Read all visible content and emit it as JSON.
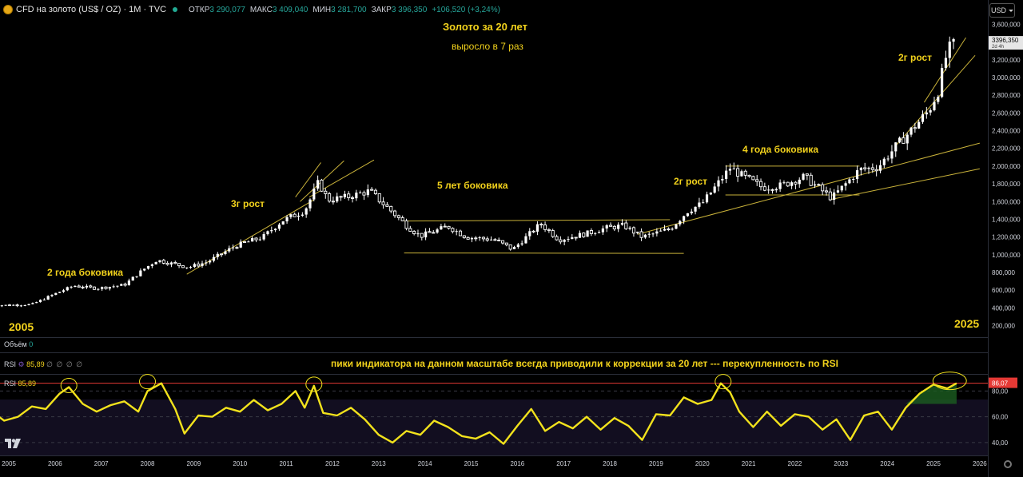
{
  "header": {
    "symbol": "CFD на золото (US$ / OZ) · 1M · TVC",
    "open_label": "ОТКР",
    "open": "3 290,077",
    "high_label": "МАКС",
    "high": "3 409,040",
    "low_label": "МИН",
    "low": "3 281,700",
    "close_label": "ЗАКР",
    "close": "3 396,350",
    "change": "+106,520 (+3,24%)",
    "currency": "USD"
  },
  "annotations": {
    "title": "Золото за 20 лет",
    "subtitle": "выросло в 7 раз",
    "range_2y": "2 года боковика",
    "growth_3y": "3г рост",
    "range_5y": "5 лет боковика",
    "growth_2y_a": "2г рост",
    "range_4y": "4 года боковика",
    "growth_2y_b": "2г рост",
    "year_start": "2005",
    "year_end": "2025",
    "rsi_note": "пики индикатора на данном масштабе всегда приводили к коррекции за 20 лет  ---  перекупленность по RSI"
  },
  "panes": {
    "volume_label": "Объём",
    "volume_value": "0",
    "rsi_label": "RSI",
    "rsi_value": "85,89",
    "rsi_extra": "∅ ∅ ∅ ∅",
    "rsi_label2": "RSI",
    "rsi_value2": "85,89"
  },
  "colors": {
    "background": "#000000",
    "candle_up": "#ffffff",
    "candle_down": "#ffffff",
    "trendline": "#c9b23a",
    "annotation": "#f2d21c",
    "rsi_line": "#f2e21c",
    "rsi_level": "#e53935",
    "rsi_fill": "#1b5e20",
    "price_tag": "#e6e6e6",
    "rsi_tag": "#e53935"
  },
  "chart_data": {
    "type": "candlestick",
    "title": "CFD на золото (US$ / OZ) · 1M · TVC",
    "x_ticks": [
      "2005",
      "2006",
      "2007",
      "2008",
      "2009",
      "2010",
      "2011",
      "2012",
      "2013",
      "2014",
      "2015",
      "2016",
      "2017",
      "2018",
      "2019",
      "2020",
      "2021",
      "2022",
      "2023",
      "2024",
      "2025",
      "2026"
    ],
    "y_ticks": [
      200,
      400,
      600,
      800,
      1000,
      1200,
      1400,
      1600,
      1800,
      2000,
      2200,
      2400,
      2600,
      2800,
      3000,
      3200,
      3400,
      3600
    ],
    "ylim": [
      160,
      3680
    ],
    "last_price": "3396,350",
    "last_price_sub": "2d 4h",
    "price_series": {
      "name": "Gold monthly close",
      "x": [
        2004.6,
        2005.0,
        2005.5,
        2006.0,
        2006.4,
        2006.9,
        2007.5,
        2007.9,
        2008.2,
        2008.7,
        2008.9,
        2009.3,
        2009.9,
        2010.5,
        2010.9,
        2011.4,
        2011.7,
        2011.9,
        2012.3,
        2012.8,
        2013.3,
        2013.6,
        2013.9,
        2014.5,
        2014.9,
        2015.5,
        2015.9,
        2016.5,
        2016.9,
        2017.5,
        2017.9,
        2018.3,
        2018.7,
        2019.3,
        2019.7,
        2020.0,
        2020.6,
        2020.9,
        2021.3,
        2021.7,
        2022.2,
        2022.8,
        2023.4,
        2023.8,
        2024.2,
        2024.6,
        2024.9,
        2025.1,
        2025.3,
        2025.5
      ],
      "y": [
        430,
        430,
        440,
        560,
        650,
        620,
        660,
        830,
        940,
        880,
        860,
        920,
        1100,
        1200,
        1380,
        1500,
        1820,
        1620,
        1650,
        1720,
        1480,
        1330,
        1210,
        1320,
        1200,
        1170,
        1060,
        1350,
        1170,
        1240,
        1300,
        1330,
        1200,
        1290,
        1500,
        1580,
        1980,
        1880,
        1760,
        1780,
        1880,
        1640,
        1960,
        1990,
        2230,
        2450,
        2630,
        2850,
        3300,
        3396
      ]
    },
    "rsi": {
      "name": "RSI",
      "value": 85.89,
      "overbought_level": 86.07,
      "y_ticks": [
        40,
        60,
        80
      ],
      "ylim": [
        30,
        92
      ],
      "x": [
        2004.6,
        2004.9,
        2005.2,
        2005.5,
        2005.8,
        2006.1,
        2006.3,
        2006.6,
        2006.9,
        2007.2,
        2007.5,
        2007.8,
        2008.0,
        2008.3,
        2008.6,
        2008.8,
        2009.1,
        2009.4,
        2009.7,
        2010.0,
        2010.3,
        2010.6,
        2010.9,
        2011.2,
        2011.4,
        2011.6,
        2011.8,
        2012.1,
        2012.4,
        2012.7,
        2013.0,
        2013.3,
        2013.6,
        2013.9,
        2014.2,
        2014.5,
        2014.8,
        2015.1,
        2015.4,
        2015.7,
        2016.0,
        2016.3,
        2016.6,
        2016.9,
        2017.2,
        2017.5,
        2017.8,
        2018.1,
        2018.4,
        2018.7,
        2019.0,
        2019.3,
        2019.6,
        2019.9,
        2020.2,
        2020.4,
        2020.6,
        2020.8,
        2021.1,
        2021.4,
        2021.7,
        2022.0,
        2022.3,
        2022.6,
        2022.9,
        2023.2,
        2023.5,
        2023.8,
        2024.1,
        2024.4,
        2024.7,
        2025.0,
        2025.3,
        2025.5
      ],
      "y": [
        65,
        57,
        60,
        68,
        66,
        78,
        83,
        70,
        64,
        69,
        72,
        64,
        80,
        86,
        66,
        47,
        61,
        60,
        67,
        64,
        73,
        65,
        70,
        80,
        67,
        84,
        63,
        61,
        67,
        58,
        46,
        40,
        49,
        46,
        57,
        52,
        45,
        43,
        48,
        39,
        53,
        66,
        49,
        56,
        51,
        60,
        50,
        59,
        53,
        42,
        62,
        61,
        75,
        70,
        73,
        86,
        79,
        64,
        52,
        64,
        53,
        62,
        60,
        50,
        58,
        42,
        61,
        64,
        50,
        67,
        78,
        85,
        82,
        86
      ]
    }
  }
}
